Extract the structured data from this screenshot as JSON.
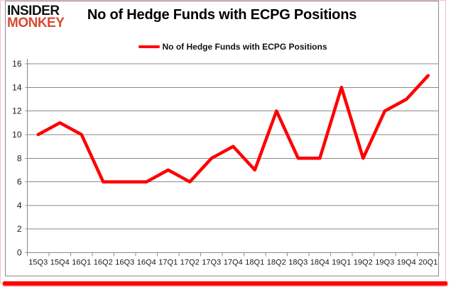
{
  "brand": {
    "line1": "INSIDER",
    "line2": "MONKEY"
  },
  "title": "No of Hedge Funds with ECPG Positions",
  "legend": {
    "label": "No of Hedge Funds with ECPG Positions"
  },
  "colors": {
    "line": "#fe0000",
    "brand_accent": "#d84a2f",
    "grid": "#8a8a8a",
    "axis_text": "#1a1a1a",
    "bottom_bar": "#fe0202",
    "outline": "#f5c0c0"
  },
  "chart_data": {
    "type": "line",
    "title": "No of Hedge Funds with ECPG Positions",
    "categories": [
      "15Q3",
      "15Q4",
      "16Q1",
      "16Q2",
      "16Q3",
      "16Q4",
      "17Q1",
      "17Q2",
      "17Q3",
      "17Q4",
      "18Q1",
      "18Q2",
      "18Q3",
      "18Q4",
      "19Q1",
      "19Q2",
      "19Q3",
      "19Q4",
      "20Q1"
    ],
    "series": [
      {
        "name": "No of Hedge Funds with ECPG Positions",
        "values": [
          10,
          11,
          10,
          6,
          6,
          6,
          7,
          6,
          8,
          9,
          7,
          12,
          8,
          8,
          14,
          8,
          12,
          13,
          15
        ]
      }
    ],
    "xlabel": "",
    "ylabel": "",
    "ylim": [
      0,
      16
    ],
    "ytick_step": 2,
    "grid": true,
    "legend_position": "top-center"
  }
}
